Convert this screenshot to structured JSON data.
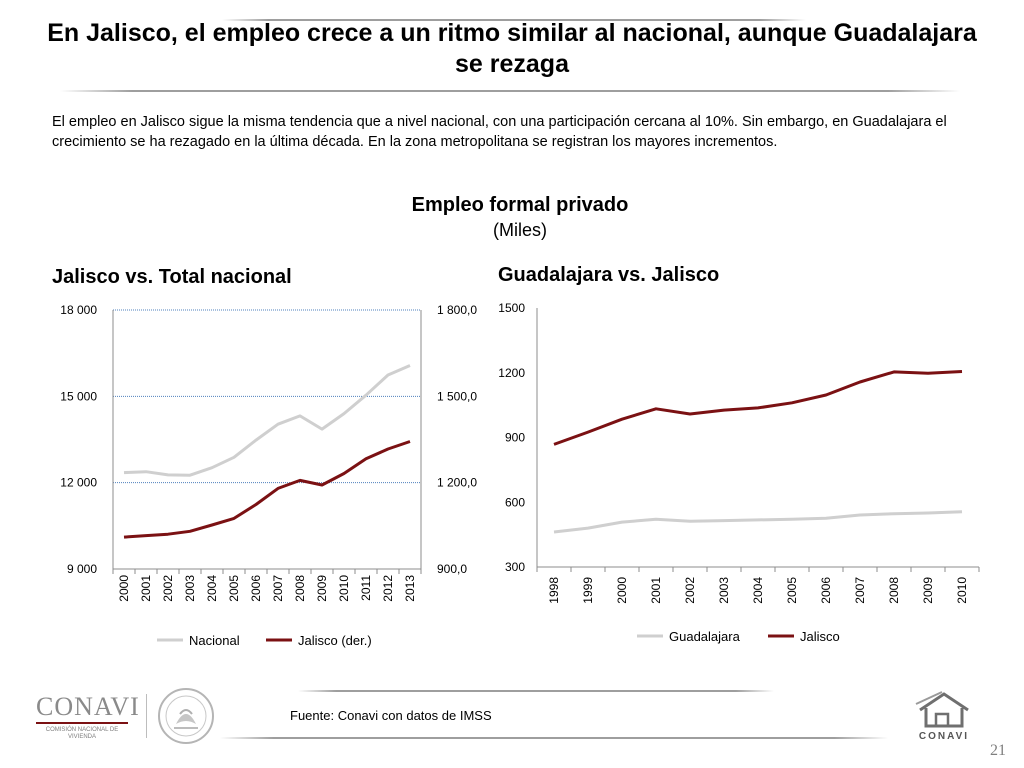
{
  "title": "En Jalisco, el empleo crece a un ritmo similar al nacional, aunque Guadalajara se rezaga",
  "intro": "El empleo en Jalisco sigue la misma tendencia que a nivel nacional,  con una participación cercana al 10%. Sin embargo, en Guadalajara el crecimiento se ha rezagado en la última década.  En la zona metropolitana se registran los mayores incrementos.",
  "chart_heading": "Empleo formal privado",
  "chart_unit": "(Miles)",
  "source": "Fuente: Conavi con datos de IMSS",
  "page_number": "21",
  "logos": {
    "conavi_left": "CONAVI",
    "conavi_sub": "COMISIÓN NACIONAL DE VIVIENDA",
    "conavi_right": "CONAVI"
  },
  "colors": {
    "gray_series": "#cfcfcf",
    "red_series": "#7b1113",
    "grid": "#4f81bd"
  },
  "chart_data": [
    {
      "type": "line",
      "title": "Jalisco vs. Total nacional",
      "x": [
        "2000",
        "2001",
        "2002",
        "2003",
        "2004",
        "2005",
        "2006",
        "2007",
        "2008",
        "2009",
        "2010",
        "2011",
        "2012",
        "2013"
      ],
      "ylim": [
        9000,
        18000
      ],
      "y_ticks": [
        "9 000",
        "12 000",
        "15 000",
        "18 000"
      ],
      "y2lim": [
        900,
        1800
      ],
      "y2_ticks": [
        "900,0",
        "1 200,0",
        "1 500,0",
        "1 800,0"
      ],
      "grid": true,
      "legend": "bottom",
      "series": [
        {
          "name": "Nacional",
          "axis": "left",
          "color": "#cfcfcf",
          "values": [
            12350,
            12380,
            12270,
            12260,
            12520,
            12880,
            13480,
            14030,
            14320,
            13860,
            14400,
            15040,
            15740,
            16070
          ]
        },
        {
          "name": "Jalisco (der.)",
          "axis": "right",
          "color": "#7b1113",
          "values": [
            1011,
            1016,
            1021,
            1031,
            1053,
            1076,
            1124,
            1180,
            1208,
            1192,
            1232,
            1283,
            1317,
            1343
          ]
        }
      ]
    },
    {
      "type": "line",
      "title": "Guadalajara vs. Jalisco",
      "x": [
        "1998",
        "1999",
        "2000",
        "2001",
        "2002",
        "2003",
        "2004",
        "2005",
        "2006",
        "2007",
        "2008",
        "2009",
        "2010"
      ],
      "ylim": [
        300,
        1500
      ],
      "y_ticks": [
        "300",
        "600",
        "900",
        "1200",
        "1500"
      ],
      "grid": false,
      "legend": "bottom",
      "series": [
        {
          "name": "Guadalajara",
          "color": "#cfcfcf",
          "values": [
            462,
            480,
            508,
            521,
            512,
            515,
            518,
            521,
            526,
            541,
            547,
            550,
            556
          ]
        },
        {
          "name": "Jalisco",
          "color": "#7b1113",
          "values": [
            868,
            925,
            985,
            1033,
            1009,
            1027,
            1037,
            1061,
            1097,
            1157,
            1204,
            1198,
            1206
          ]
        }
      ]
    }
  ]
}
